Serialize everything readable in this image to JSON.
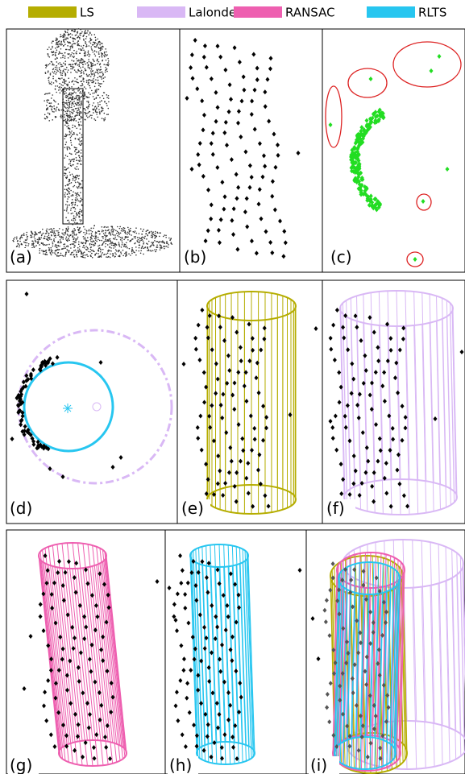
{
  "legend": [
    {
      "label": "LS",
      "color": "#b5ad00"
    },
    {
      "label": "Lalonde",
      "color": "#d9b8f5"
    },
    {
      "label": "RANSAC",
      "color": "#ee5fb0"
    },
    {
      "label": "RLTS",
      "color": "#27c6f0"
    }
  ],
  "panels": [
    {
      "label": "(a)"
    },
    {
      "label": "(b)"
    },
    {
      "label": "(c)"
    },
    {
      "label": "(d)"
    },
    {
      "label": "(e)"
    },
    {
      "label": "(f)"
    },
    {
      "label": "(g)"
    },
    {
      "label": "(h)"
    },
    {
      "label": "(i)"
    }
  ]
}
